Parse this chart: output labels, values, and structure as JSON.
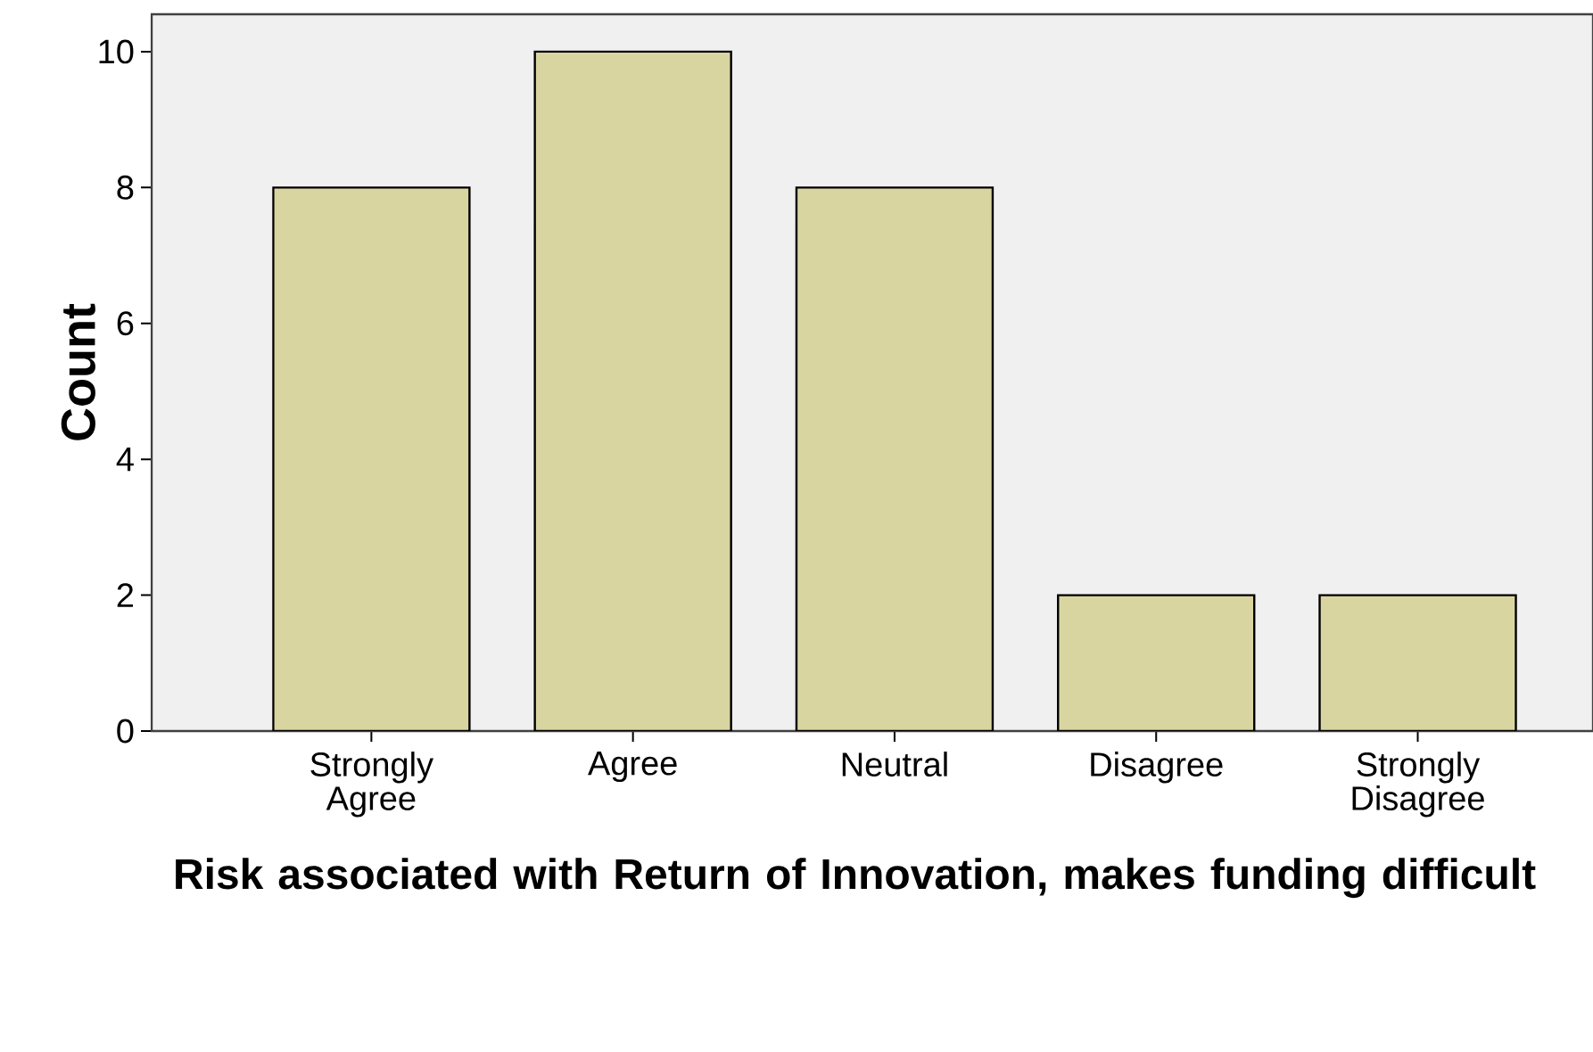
{
  "chart_data": {
    "type": "bar",
    "xlabel": "Risk associated with Return of Innovation, makes funding difficult",
    "ylabel": "Count",
    "categories": [
      "Strongly Agree",
      "Agree",
      "Neutral",
      "Disagree",
      "Strongly Disagree"
    ],
    "values": [
      8,
      10,
      8,
      2,
      2
    ],
    "color": "#d9d5a0",
    "ylim": [
      0,
      10.55
    ],
    "yticks": [
      0,
      2,
      4,
      6,
      8,
      10
    ],
    "grid": false
  }
}
